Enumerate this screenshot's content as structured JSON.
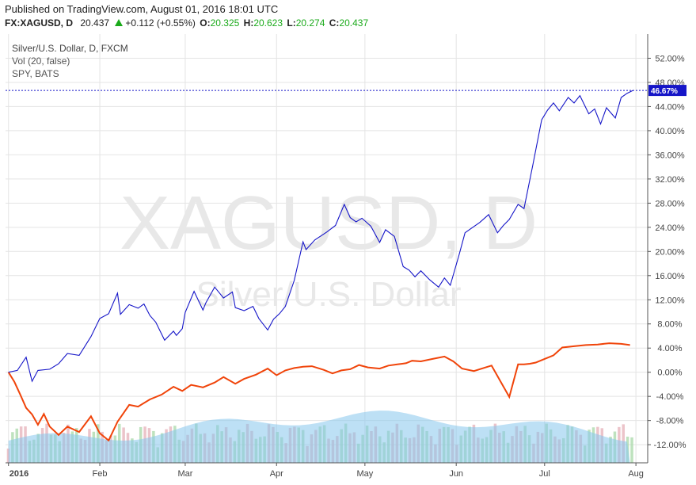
{
  "header": {
    "published": "Published on TradingView.com, August 01, 2016 18:01 UTC",
    "symbol": "FX:XAGUSD, D",
    "last": "20.437",
    "change": "+0.112 (+0.55%)",
    "open_label": "O:",
    "open": "20.325",
    "high_label": "H:",
    "high": "20.623",
    "low_label": "L:",
    "low": "20.274",
    "close_label": "C:",
    "close": "20.437"
  },
  "legend": {
    "line1": "Silver/U.S. Dollar, D, FXCM",
    "line2": "Vol (20, false)",
    "line3": "SPY, BATS"
  },
  "watermark": {
    "big": "XAGUSD, D",
    "small": "Silver/U.S. Dollar"
  },
  "colors": {
    "xag": "#1515c8",
    "spy": "#f0440a",
    "vol_up": "#a8d8a8",
    "vol_down": "#e6b0b8",
    "vol_ma": "#87c6ec",
    "grid": "#e4e4e4",
    "price_tag": "#1515c8"
  },
  "price_tag": "46.67%",
  "chart_data": {
    "type": "line",
    "ylabel": "",
    "ylim": [
      -15,
      56
    ],
    "y_ticks": [
      "52.00%",
      "48.00%",
      "44.00%",
      "40.00%",
      "36.00%",
      "32.00%",
      "28.00%",
      "24.00%",
      "20.00%",
      "16.00%",
      "12.00%",
      "8.00%",
      "4.00%",
      "0.00%",
      "-4.00%",
      "-8.00%",
      "-12.00%"
    ],
    "y_tick_values": [
      52,
      48,
      44,
      40,
      36,
      32,
      28,
      24,
      20,
      16,
      12,
      8,
      4,
      0,
      -4,
      -8,
      -12
    ],
    "x_labels": [
      "2016",
      "Feb",
      "Mar",
      "Apr",
      "May",
      "Jun",
      "Jul",
      "Aug"
    ],
    "x_label_days": [
      0,
      31,
      60,
      91,
      121,
      152,
      182,
      213
    ],
    "x_range_days": [
      -1,
      217
    ],
    "series": [
      {
        "name": "Silver/U.S. Dollar",
        "x": [
          0,
          3,
          6,
          8,
          10,
          14,
          17,
          20,
          24,
          28,
          31,
          34,
          37,
          38,
          41,
          44,
          46,
          48,
          50,
          53,
          56,
          57,
          59,
          60,
          63,
          66,
          67,
          70,
          73,
          76,
          77,
          80,
          83,
          85,
          88,
          90,
          92,
          94,
          97,
          100,
          101,
          104,
          108,
          111,
          114,
          116,
          118,
          120,
          123,
          126,
          128,
          131,
          134,
          136,
          138,
          140,
          143,
          146,
          148,
          150,
          153,
          155,
          157,
          160,
          163,
          166,
          168,
          170,
          173,
          175,
          178,
          181,
          183,
          185,
          187,
          190,
          192,
          194,
          197,
          199,
          201,
          203,
          206,
          208,
          210,
          212
        ],
        "values": [
          0.0,
          0.3,
          2.5,
          -1.5,
          0.3,
          0.5,
          1.4,
          3.1,
          2.8,
          5.9,
          8.9,
          9.7,
          13.1,
          9.6,
          11.2,
          10.6,
          11.3,
          9.4,
          8.3,
          5.3,
          6.8,
          6.1,
          7.2,
          9.9,
          13.4,
          10.3,
          11.5,
          14.1,
          12.3,
          13.3,
          10.7,
          10.2,
          10.9,
          8.9,
          7.0,
          8.8,
          9.7,
          10.9,
          15.2,
          21.6,
          20.3,
          21.9,
          23.2,
          24.3,
          27.8,
          25.6,
          24.9,
          25.5,
          24.2,
          21.5,
          23.6,
          22.5,
          17.5,
          16.9,
          15.8,
          16.8,
          15.3,
          14.1,
          15.6,
          14.4,
          19.5,
          23.1,
          23.8,
          24.8,
          26.1,
          23.1,
          24.3,
          25.3,
          27.8,
          27.1,
          34.3,
          41.8,
          43.4,
          44.6,
          43.3,
          45.5,
          44.6,
          45.8,
          42.8,
          43.6,
          41.1,
          43.8,
          42.1,
          45.5,
          46.2,
          46.67
        ]
      },
      {
        "name": "SPY",
        "x": [
          0,
          2,
          4,
          6,
          8,
          10,
          12,
          14,
          17,
          20,
          24,
          28,
          31,
          34,
          37,
          41,
          44,
          48,
          52,
          56,
          59,
          62,
          66,
          70,
          73,
          77,
          80,
          84,
          88,
          91,
          94,
          97,
          100,
          103,
          107,
          110,
          113,
          116,
          119,
          122,
          126,
          129,
          132,
          135,
          137,
          140,
          144,
          148,
          151,
          154,
          158,
          162,
          164,
          167,
          170,
          173,
          175,
          177,
          179,
          182,
          185,
          188,
          192,
          196,
          200,
          204,
          208,
          211
        ],
        "values": [
          0.0,
          -1.6,
          -3.7,
          -5.9,
          -7.0,
          -8.7,
          -6.9,
          -9.0,
          -10.4,
          -9.0,
          -9.9,
          -7.3,
          -10.1,
          -11.3,
          -8.2,
          -5.4,
          -5.7,
          -4.5,
          -3.7,
          -2.4,
          -3.1,
          -2.1,
          -2.5,
          -1.7,
          -0.8,
          -1.9,
          -1.1,
          -0.4,
          0.6,
          -0.5,
          0.3,
          0.7,
          0.9,
          1.0,
          0.4,
          -0.2,
          0.3,
          0.5,
          1.2,
          0.8,
          0.6,
          1.1,
          1.3,
          1.5,
          1.9,
          1.8,
          2.2,
          2.6,
          1.8,
          0.6,
          0.2,
          0.8,
          1.1,
          -1.5,
          -4.1,
          1.3,
          1.3,
          1.4,
          1.6,
          2.2,
          2.8,
          4.1,
          4.3,
          4.5,
          4.6,
          4.8,
          4.7,
          4.5
        ]
      }
    ]
  }
}
